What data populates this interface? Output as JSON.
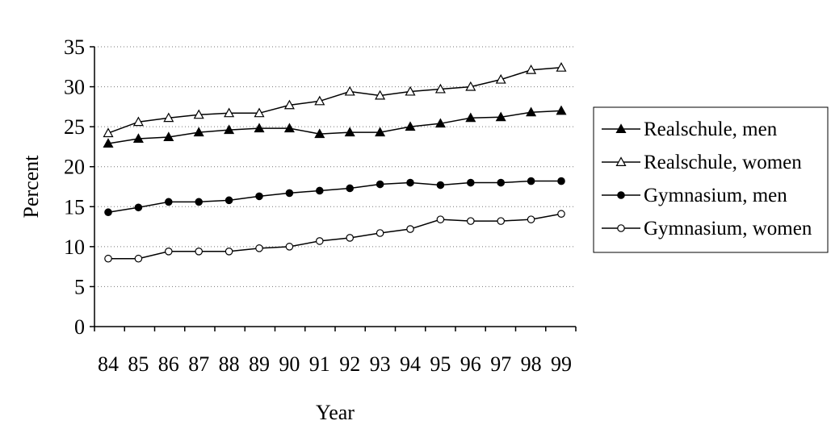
{
  "chart_data": {
    "type": "line",
    "title": "",
    "xlabel": "Year",
    "ylabel": "Percent",
    "categories": [
      "84",
      "85",
      "86",
      "87",
      "88",
      "89",
      "90",
      "91",
      "92",
      "93",
      "94",
      "95",
      "96",
      "97",
      "98",
      "99"
    ],
    "ylim": [
      0,
      35
    ],
    "yticks": [
      "0",
      "5",
      "10",
      "15",
      "20",
      "25",
      "30",
      "35"
    ],
    "grid": "horizontal dotted",
    "legend_position": "right",
    "series": [
      {
        "name": "Realschule, men",
        "marker": "filled-triangle",
        "values": [
          22.9,
          23.5,
          23.7,
          24.3,
          24.6,
          24.8,
          24.8,
          24.1,
          24.3,
          24.3,
          25.0,
          25.4,
          26.1,
          26.2,
          26.8,
          27.0
        ]
      },
      {
        "name": "Realschule, women",
        "marker": "open-triangle",
        "values": [
          24.2,
          25.6,
          26.1,
          26.5,
          26.7,
          26.7,
          27.7,
          28.2,
          29.4,
          28.9,
          29.4,
          29.7,
          30.0,
          30.9,
          32.1,
          32.4
        ]
      },
      {
        "name": "Gymnasium, men",
        "marker": "filled-circle",
        "values": [
          14.3,
          14.9,
          15.6,
          15.6,
          15.8,
          16.3,
          16.7,
          17.0,
          17.3,
          17.8,
          18.0,
          17.7,
          18.0,
          18.0,
          18.2,
          18.2
        ]
      },
      {
        "name": "Gymnasium, women",
        "marker": "open-circle",
        "values": [
          8.5,
          8.5,
          9.4,
          9.4,
          9.4,
          9.8,
          10.0,
          10.7,
          11.1,
          11.7,
          12.2,
          13.4,
          13.2,
          13.2,
          13.4,
          14.1
        ]
      }
    ]
  }
}
